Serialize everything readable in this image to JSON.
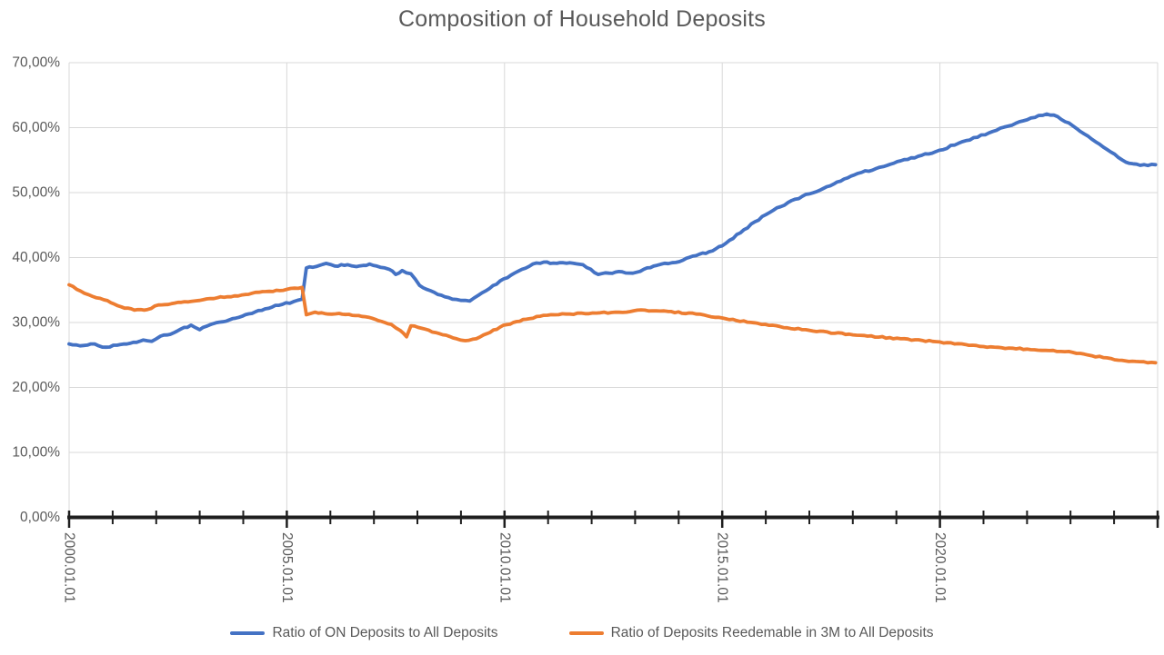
{
  "title": "Composition of Household Deposits",
  "colors": {
    "series_blue": "#4472C4",
    "series_orange": "#ED7D31",
    "gridline": "#D9D9D9",
    "axis_line": "#1F1F1F",
    "text_gray": "#595959",
    "background": "#FFFFFF"
  },
  "chart_data": {
    "type": "line",
    "title": "Composition of Household Deposits",
    "grid": true,
    "legend_position": "bottom",
    "y_axis": {
      "min": 0,
      "max": 70,
      "tick_step": 10,
      "number_format": "percent with comma decimals",
      "tick_labels": [
        "0,00%",
        "10,00%",
        "20,00%",
        "30,00%",
        "40,00%",
        "50,00%",
        "60,00%",
        "70,00%"
      ]
    },
    "x_axis": {
      "start_year": 2000,
      "end_year": 2025,
      "minor_tick_every_years": 1,
      "label_every_years": 5,
      "date_format": "yyyy.mm.dd",
      "tick_labels": [
        "2000.01.01",
        "2005.01.01",
        "2010.01.01",
        "2015.01.01",
        "2020.01.01"
      ]
    },
    "units": "percent of all household deposits, x = decimal year",
    "series": [
      {
        "name": "Ratio of ON Deposits to All Deposits",
        "color": "#4472C4",
        "points": [
          [
            2000.0,
            26.7
          ],
          [
            2000.25,
            26.4
          ],
          [
            2000.5,
            26.7
          ],
          [
            2000.85,
            26.2
          ],
          [
            2001.1,
            26.5
          ],
          [
            2001.4,
            26.8
          ],
          [
            2001.7,
            27.3
          ],
          [
            2001.9,
            27.1
          ],
          [
            2002.1,
            27.9
          ],
          [
            2002.4,
            28.4
          ],
          [
            2002.8,
            29.6
          ],
          [
            2003.0,
            28.9
          ],
          [
            2003.3,
            29.8
          ],
          [
            2003.6,
            30.2
          ],
          [
            2003.9,
            30.8
          ],
          [
            2004.2,
            31.4
          ],
          [
            2004.5,
            32.1
          ],
          [
            2004.9,
            32.8
          ],
          [
            2005.15,
            33.2
          ],
          [
            2005.35,
            33.6
          ],
          [
            2005.45,
            38.4
          ],
          [
            2005.6,
            38.5
          ],
          [
            2005.9,
            39.1
          ],
          [
            2006.1,
            38.7
          ],
          [
            2006.4,
            38.9
          ],
          [
            2006.6,
            38.6
          ],
          [
            2006.9,
            39.0
          ],
          [
            2007.15,
            38.5
          ],
          [
            2007.35,
            38.2
          ],
          [
            2007.5,
            37.4
          ],
          [
            2007.65,
            38.0
          ],
          [
            2007.85,
            37.5
          ],
          [
            2008.05,
            35.7
          ],
          [
            2008.3,
            34.9
          ],
          [
            2008.55,
            34.2
          ],
          [
            2008.8,
            33.6
          ],
          [
            2009.0,
            33.4
          ],
          [
            2009.2,
            33.3
          ],
          [
            2009.4,
            34.2
          ],
          [
            2009.65,
            35.2
          ],
          [
            2009.9,
            36.4
          ],
          [
            2010.15,
            37.3
          ],
          [
            2010.4,
            38.2
          ],
          [
            2010.65,
            39.0
          ],
          [
            2010.9,
            39.3
          ],
          [
            2011.2,
            39.1
          ],
          [
            2011.5,
            39.2
          ],
          [
            2011.8,
            38.9
          ],
          [
            2012.15,
            37.4
          ],
          [
            2012.4,
            37.6
          ],
          [
            2012.7,
            37.8
          ],
          [
            2012.95,
            37.6
          ],
          [
            2013.2,
            38.2
          ],
          [
            2013.5,
            38.8
          ],
          [
            2013.85,
            39.2
          ],
          [
            2014.1,
            39.6
          ],
          [
            2014.4,
            40.3
          ],
          [
            2014.7,
            40.9
          ],
          [
            2015.0,
            41.8
          ],
          [
            2015.5,
            44.3
          ],
          [
            2016.0,
            46.6
          ],
          [
            2016.6,
            48.8
          ],
          [
            2017.0,
            49.8
          ],
          [
            2017.4,
            50.9
          ],
          [
            2017.8,
            52.1
          ],
          [
            2018.2,
            53.1
          ],
          [
            2018.7,
            54.0
          ],
          [
            2019.1,
            54.9
          ],
          [
            2019.5,
            55.6
          ],
          [
            2019.9,
            56.3
          ],
          [
            2020.6,
            58.0
          ],
          [
            2021.3,
            59.6
          ],
          [
            2022.0,
            61.2
          ],
          [
            2022.45,
            62.1
          ],
          [
            2022.7,
            61.7
          ],
          [
            2023.05,
            60.3
          ],
          [
            2023.4,
            58.7
          ],
          [
            2023.75,
            57.0
          ],
          [
            2024.1,
            55.4
          ],
          [
            2024.35,
            54.5
          ],
          [
            2024.6,
            54.2
          ],
          [
            2024.95,
            54.3
          ]
        ]
      },
      {
        "name": "Ratio of Deposits Reedemable in 3M to All Deposits",
        "color": "#ED7D31",
        "points": [
          [
            2000.0,
            35.8
          ],
          [
            2000.35,
            34.5
          ],
          [
            2000.8,
            33.5
          ],
          [
            2001.2,
            32.4
          ],
          [
            2001.5,
            31.9
          ],
          [
            2001.8,
            32.0
          ],
          [
            2002.05,
            32.7
          ],
          [
            2002.35,
            32.9
          ],
          [
            2002.65,
            33.2
          ],
          [
            2003.0,
            33.4
          ],
          [
            2003.4,
            33.8
          ],
          [
            2003.8,
            34.1
          ],
          [
            2004.2,
            34.5
          ],
          [
            2004.6,
            34.8
          ],
          [
            2005.0,
            35.1
          ],
          [
            2005.35,
            35.4
          ],
          [
            2005.45,
            31.2
          ],
          [
            2005.65,
            31.6
          ],
          [
            2005.95,
            31.3
          ],
          [
            2006.2,
            31.4
          ],
          [
            2006.5,
            31.1
          ],
          [
            2006.8,
            30.9
          ],
          [
            2007.1,
            30.3
          ],
          [
            2007.4,
            29.7
          ],
          [
            2007.6,
            28.8
          ],
          [
            2007.75,
            27.8
          ],
          [
            2007.85,
            29.5
          ],
          [
            2008.1,
            29.1
          ],
          [
            2008.5,
            28.3
          ],
          [
            2008.9,
            27.5
          ],
          [
            2009.1,
            27.2
          ],
          [
            2009.35,
            27.5
          ],
          [
            2009.6,
            28.3
          ],
          [
            2009.9,
            29.3
          ],
          [
            2010.2,
            30.0
          ],
          [
            2010.5,
            30.5
          ],
          [
            2010.9,
            31.1
          ],
          [
            2011.5,
            31.3
          ],
          [
            2012.2,
            31.5
          ],
          [
            2012.8,
            31.6
          ],
          [
            2013.05,
            31.9
          ],
          [
            2013.4,
            31.8
          ],
          [
            2013.75,
            31.7
          ],
          [
            2014.4,
            31.3
          ],
          [
            2015.0,
            30.7
          ],
          [
            2015.9,
            29.7
          ],
          [
            2017.0,
            28.8
          ],
          [
            2018.0,
            28.1
          ],
          [
            2019.1,
            27.5
          ],
          [
            2020.0,
            27.0
          ],
          [
            2021.0,
            26.3
          ],
          [
            2022.0,
            25.9
          ],
          [
            2022.6,
            25.7
          ],
          [
            2023.05,
            25.4
          ],
          [
            2023.4,
            25.0
          ],
          [
            2023.75,
            24.6
          ],
          [
            2024.1,
            24.2
          ],
          [
            2024.5,
            24.0
          ],
          [
            2024.95,
            23.8
          ]
        ]
      }
    ]
  }
}
